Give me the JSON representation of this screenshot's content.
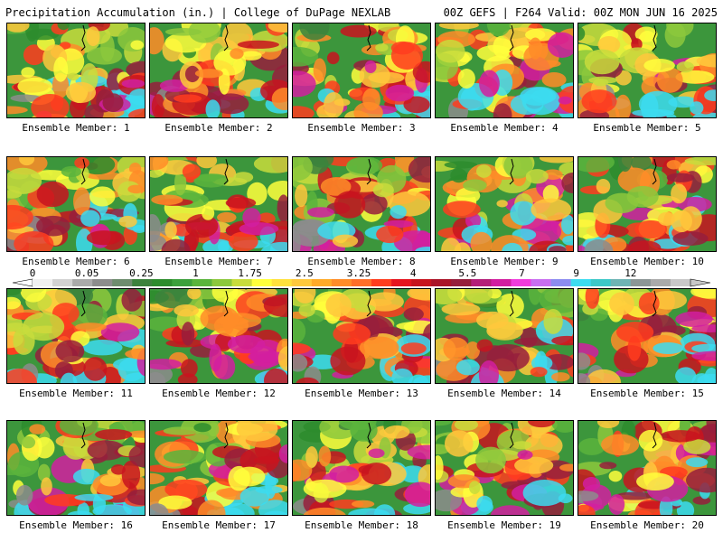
{
  "header": {
    "left": "Precipitation Accumulation (in.) | College of DuPage NEXLAB",
    "right": "00Z GEFS | F264 Valid: 00Z MON JUN 16 2025"
  },
  "panels": [
    {
      "label": "Ensemble Member: 1",
      "seed": 11
    },
    {
      "label": "Ensemble Member: 2",
      "seed": 23
    },
    {
      "label": "Ensemble Member: 3",
      "seed": 37
    },
    {
      "label": "Ensemble Member: 4",
      "seed": 41
    },
    {
      "label": "Ensemble Member: 5",
      "seed": 53
    },
    {
      "label": "Ensemble Member: 6",
      "seed": 67
    },
    {
      "label": "Ensemble Member: 7",
      "seed": 71
    },
    {
      "label": "Ensemble Member: 8",
      "seed": 83
    },
    {
      "label": "Ensemble Member: 9",
      "seed": 97
    },
    {
      "label": "Ensemble Member: 10",
      "seed": 101
    },
    {
      "label": "Ensemble Member: 11",
      "seed": 113
    },
    {
      "label": "Ensemble Member: 12",
      "seed": 127
    },
    {
      "label": "Ensemble Member: 13",
      "seed": 131
    },
    {
      "label": "Ensemble Member: 14",
      "seed": 149
    },
    {
      "label": "Ensemble Member: 15",
      "seed": 151
    },
    {
      "label": "Ensemble Member: 16",
      "seed": 163
    },
    {
      "label": "Ensemble Member: 17",
      "seed": 173
    },
    {
      "label": "Ensemble Member: 18",
      "seed": 181
    },
    {
      "label": "Ensemble Member: 19",
      "seed": 191
    },
    {
      "label": "Ensemble Member: 20",
      "seed": 199
    }
  ],
  "colorbar": {
    "tick_labels": [
      "0",
      "0.05",
      "0.25",
      "1",
      "1.75",
      "2.5",
      "3.25",
      "4",
      "5.5",
      "7",
      "9",
      "12"
    ],
    "colors": [
      "#f0f0f0",
      "#d2d2d2",
      "#aaaaaa",
      "#8c8c8c",
      "#6e8c6e",
      "#3c823c",
      "#2d8c2d",
      "#3ca03c",
      "#5ab43c",
      "#8cc83c",
      "#c8dc3c",
      "#ffff3c",
      "#ffe13c",
      "#ffc83c",
      "#ffaa28",
      "#ff8c28",
      "#ff6e28",
      "#ff3c1e",
      "#e6141e",
      "#c8141e",
      "#aa1428",
      "#961e3c",
      "#b41e78",
      "#d21ea0",
      "#f03cdc",
      "#c86ef0",
      "#8c8cf0",
      "#3cdcf0",
      "#3cc8c8",
      "#6eb4b4",
      "#8c9696",
      "#aaaaaa",
      "#c8c8c8"
    ]
  }
}
